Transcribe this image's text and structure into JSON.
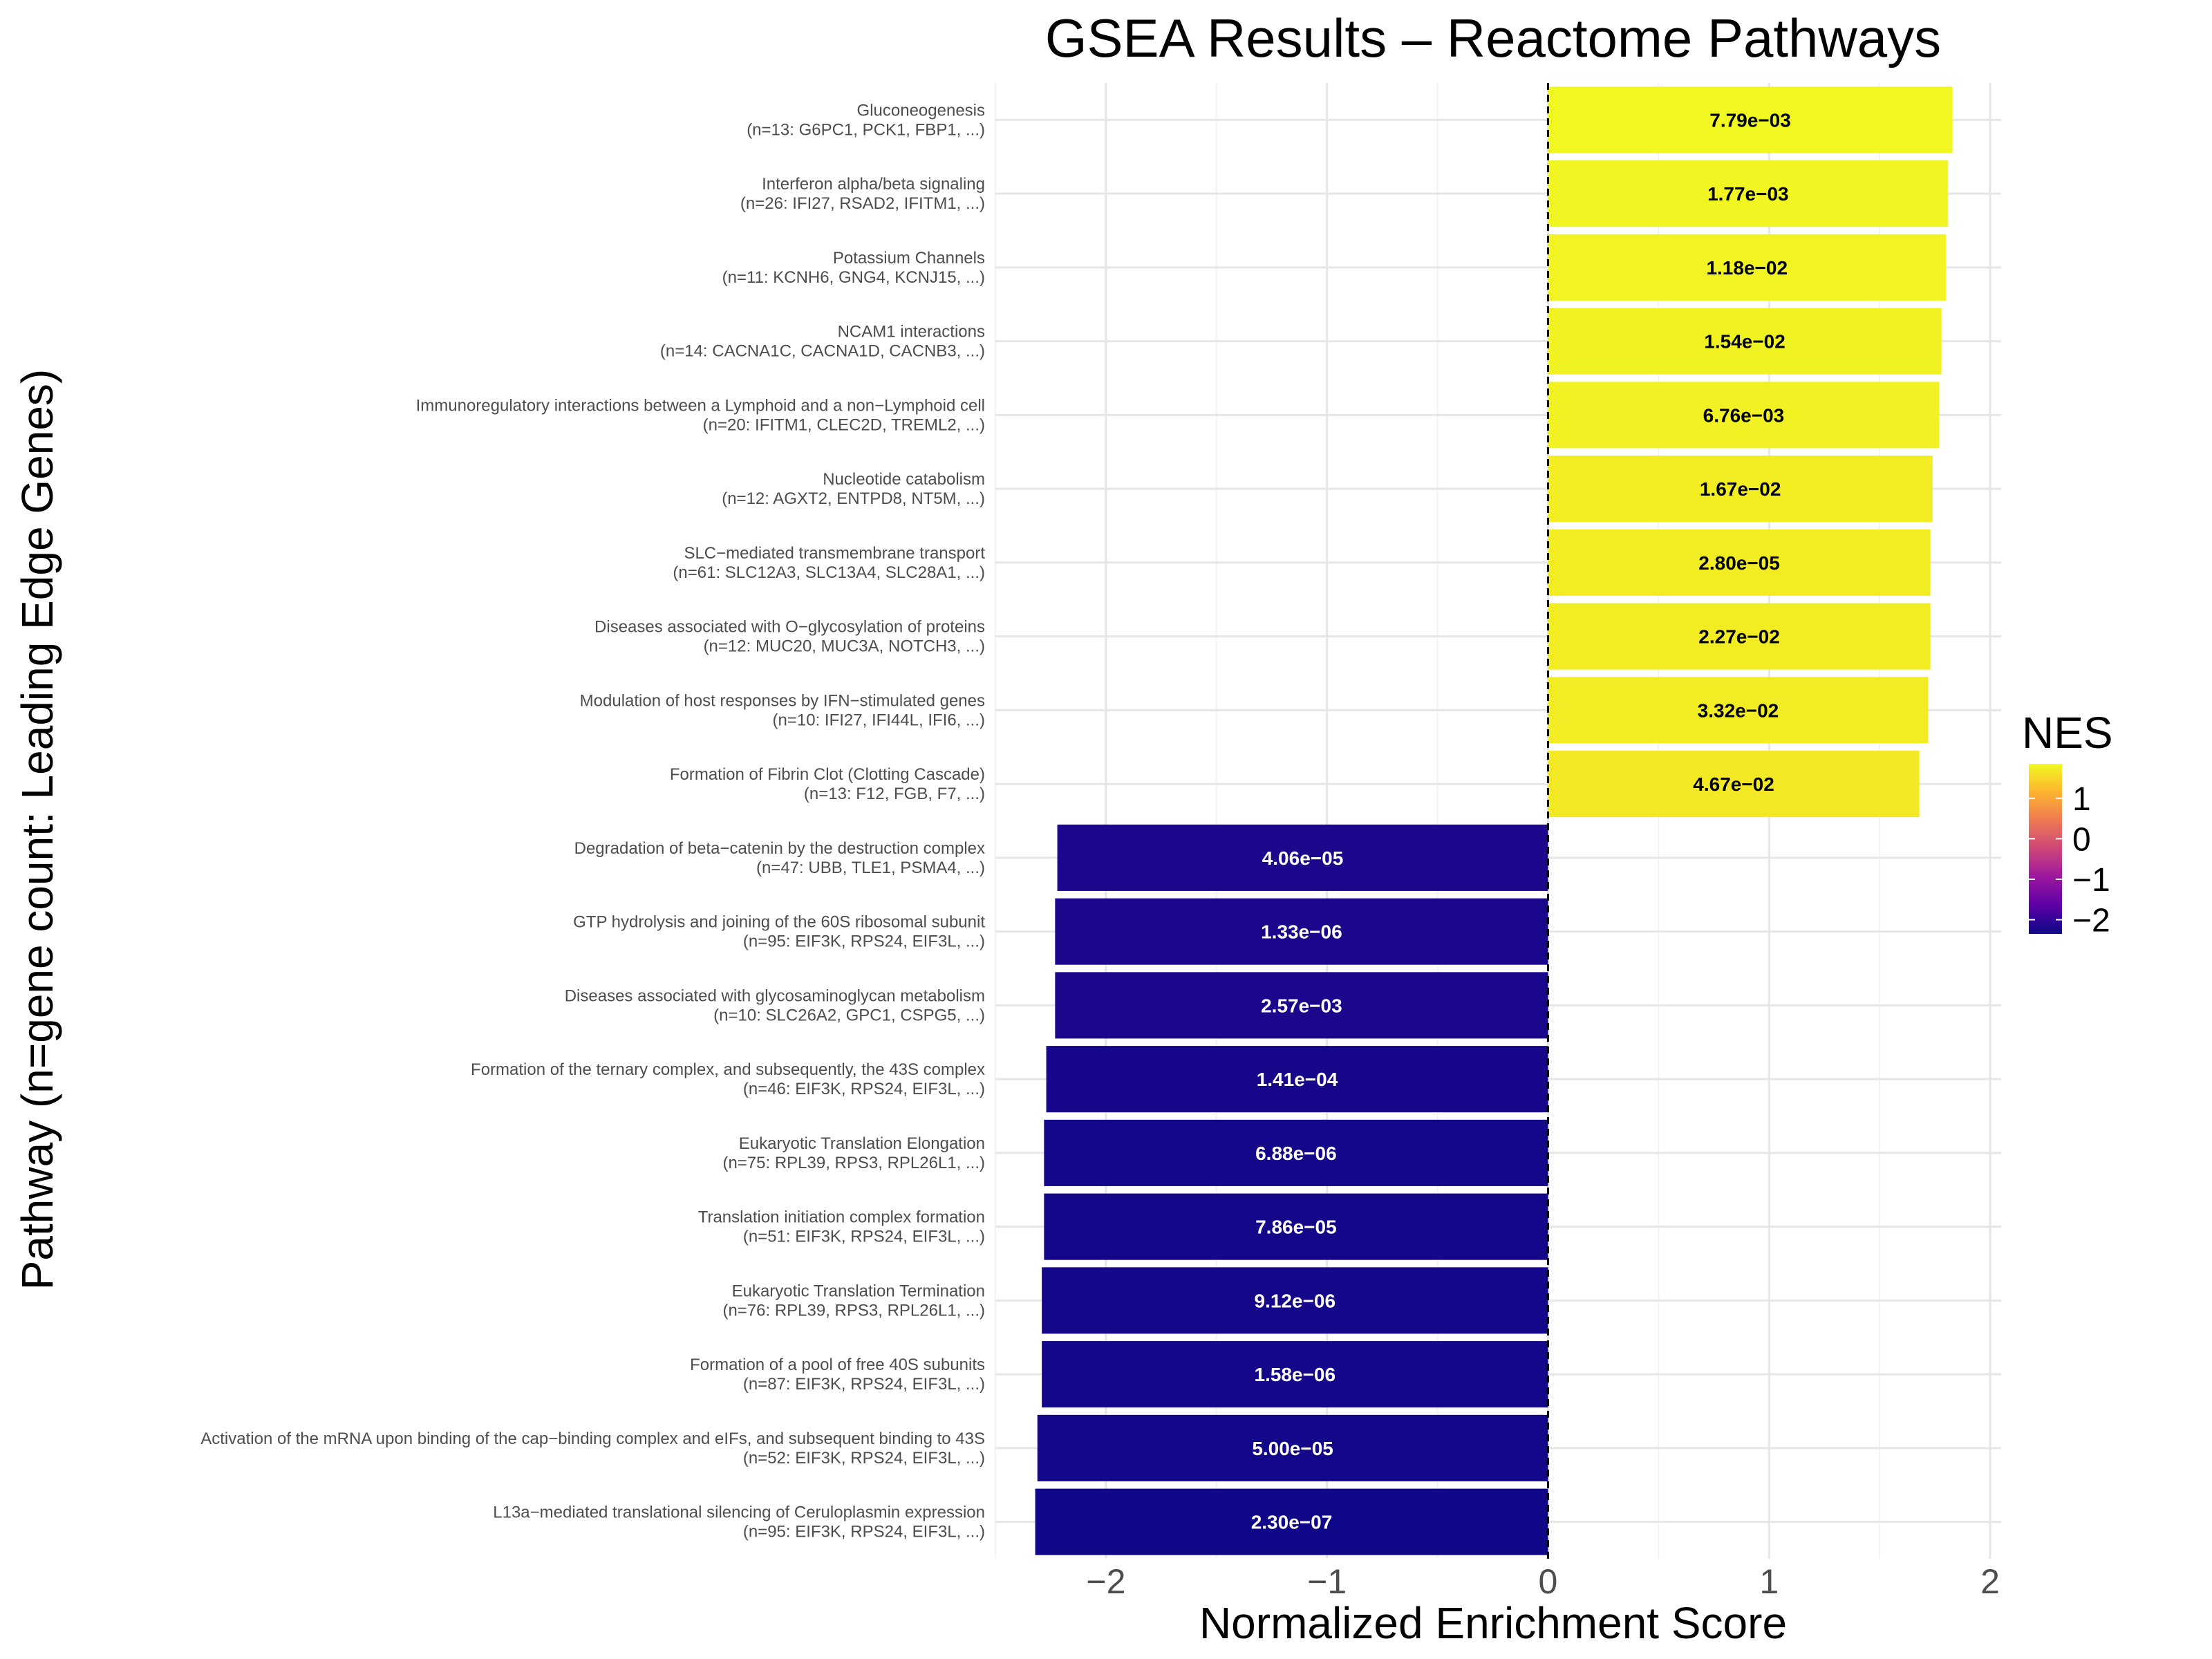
{
  "chart_data": {
    "type": "bar",
    "orientation": "horizontal",
    "title": "GSEA Results – Reactome Pathways",
    "xlabel": "Normalized Enrichment Score",
    "ylabel": "Pathway (n=gene count: Leading Edge Genes)",
    "xlim": [
      -2.5,
      2.05
    ],
    "x_ticks": [
      -2,
      -1,
      0,
      1,
      2
    ],
    "x_tick_labels": [
      "−2",
      "−1",
      "0",
      "1",
      "2"
    ],
    "grid": true,
    "reference_line": 0,
    "legend": {
      "title": "NES",
      "position": "right",
      "type": "colorbar",
      "ticks": [
        1,
        0,
        -1,
        -2
      ],
      "tick_labels": [
        "1",
        "0",
        "−1",
        "−2"
      ],
      "range": [
        -2.35,
        1.85
      ],
      "colors": [
        "#0d0887",
        "#5c01a6",
        "#9c179e",
        "#cc4778",
        "#ed7953",
        "#fdb42f",
        "#f0f921"
      ]
    },
    "categories": [
      {
        "name": "Gluconeogenesis",
        "genes": "(n=13: G6PC1, PCK1, FBP1, ...)",
        "nes": 1.83,
        "pval": "7.79e−03"
      },
      {
        "name": "Interferon alpha/beta signaling",
        "genes": "(n=26: IFI27, RSAD2, IFITM1, ...)",
        "nes": 1.81,
        "pval": "1.77e−03"
      },
      {
        "name": "Potassium Channels",
        "genes": "(n=11: KCNH6, GNG4, KCNJ15, ...)",
        "nes": 1.8,
        "pval": "1.18e−02"
      },
      {
        "name": "NCAM1 interactions",
        "genes": "(n=14: CACNA1C, CACNA1D, CACNB3, ...)",
        "nes": 1.78,
        "pval": "1.54e−02"
      },
      {
        "name": "Immunoregulatory interactions between a Lymphoid and a non−Lymphoid cell",
        "genes": "(n=20: IFITM1, CLEC2D, TREML2, ...)",
        "nes": 1.77,
        "pval": "6.76e−03"
      },
      {
        "name": "Nucleotide catabolism",
        "genes": "(n=12: AGXT2, ENTPD8, NT5M, ...)",
        "nes": 1.74,
        "pval": "1.67e−02"
      },
      {
        "name": "SLC−mediated transmembrane transport",
        "genes": "(n=61: SLC12A3, SLC13A4, SLC28A1, ...)",
        "nes": 1.73,
        "pval": "2.80e−05"
      },
      {
        "name": "Diseases associated with O−glycosylation of proteins",
        "genes": "(n=12: MUC20, MUC3A, NOTCH3, ...)",
        "nes": 1.73,
        "pval": "2.27e−02"
      },
      {
        "name": "Modulation of host responses by IFN−stimulated genes",
        "genes": "(n=10: IFI27, IFI44L, IFI6, ...)",
        "nes": 1.72,
        "pval": "3.32e−02"
      },
      {
        "name": "Formation of Fibrin Clot (Clotting Cascade)",
        "genes": "(n=13: F12, FGB, F7, ...)",
        "nes": 1.68,
        "pval": "4.67e−02"
      },
      {
        "name": "Degradation of beta−catenin by the destruction complex",
        "genes": "(n=47: UBB, TLE1, PSMA4, ...)",
        "nes": -2.22,
        "pval": "4.06e−05"
      },
      {
        "name": "GTP hydrolysis and joining of the 60S ribosomal subunit",
        "genes": "(n=95: EIF3K, RPS24, EIF3L, ...)",
        "nes": -2.23,
        "pval": "1.33e−06"
      },
      {
        "name": "Diseases associated with glycosaminoglycan metabolism",
        "genes": "(n=10: SLC26A2, GPC1, CSPG5, ...)",
        "nes": -2.23,
        "pval": "2.57e−03"
      },
      {
        "name": "Formation of the ternary complex, and subsequently, the 43S complex",
        "genes": "(n=46: EIF3K, RPS24, EIF3L, ...)",
        "nes": -2.27,
        "pval": "1.41e−04"
      },
      {
        "name": "Eukaryotic Translation Elongation",
        "genes": "(n=75: RPL39, RPS3, RPL26L1, ...)",
        "nes": -2.28,
        "pval": "6.88e−06"
      },
      {
        "name": "Translation initiation complex formation",
        "genes": "(n=51: EIF3K, RPS24, EIF3L, ...)",
        "nes": -2.28,
        "pval": "7.86e−05"
      },
      {
        "name": "Eukaryotic Translation Termination",
        "genes": "(n=76: RPL39, RPS3, RPL26L1, ...)",
        "nes": -2.29,
        "pval": "9.12e−06"
      },
      {
        "name": "Formation of a pool of free 40S subunits",
        "genes": "(n=87: EIF3K, RPS24, EIF3L, ...)",
        "nes": -2.29,
        "pval": "1.58e−06"
      },
      {
        "name": "Activation of the mRNA upon binding of the cap−binding complex and eIFs, and subsequent binding to 43S",
        "genes": "(n=52: EIF3K, RPS24, EIF3L, ...)",
        "nes": -2.31,
        "pval": "5.00e−05"
      },
      {
        "name": "L13a−mediated translational silencing of Ceruloplasmin expression",
        "genes": "(n=95: EIF3K, RPS24, EIF3L, ...)",
        "nes": -2.32,
        "pval": "2.30e−07"
      }
    ]
  }
}
